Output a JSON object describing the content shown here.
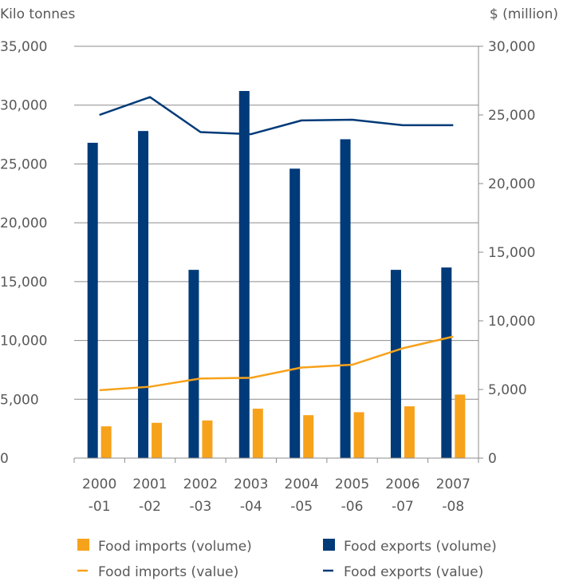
{
  "chart_data": {
    "type": "bar",
    "title": "",
    "xlabel": "",
    "ylabel_left": "Kilo tonnes",
    "ylabel_right": "$ (million)",
    "categories": [
      [
        "2000",
        "-01"
      ],
      [
        "2001",
        "-02"
      ],
      [
        "2002",
        "-03"
      ],
      [
        "2003",
        "-04"
      ],
      [
        "2004",
        "-05"
      ],
      [
        "2005",
        "-06"
      ],
      [
        "2006",
        "-07"
      ],
      [
        "2007",
        "-08"
      ]
    ],
    "ylim_left": [
      0,
      35000
    ],
    "ylim_right": [
      0,
      30000
    ],
    "yticks_left": [
      "0",
      "5,000",
      "10,000",
      "15,000",
      "20,000",
      "25,000",
      "30,000",
      "35,000"
    ],
    "yticks_right": [
      "0",
      "5,000",
      "10,000",
      "15,000",
      "20,000",
      "25,000",
      "30,000"
    ],
    "grid": true,
    "legend_position": "bottom",
    "series": [
      {
        "name": "Food imports (volume)",
        "kind": "bar",
        "axis": "left",
        "color": "#f7a21b",
        "values": [
          2700,
          3000,
          3200,
          4200,
          3650,
          3900,
          4400,
          5400
        ]
      },
      {
        "name": "Food exports (volume)",
        "kind": "bar",
        "axis": "left",
        "color": "#003a78",
        "values": [
          26800,
          27800,
          16000,
          31200,
          24600,
          27100,
          16000,
          16200
        ]
      },
      {
        "name": "Food imports (value)",
        "kind": "line",
        "axis": "right",
        "color": "#f7a21b",
        "values": [
          4950,
          5200,
          5800,
          5850,
          6600,
          6800,
          8000,
          8850
        ]
      },
      {
        "name": "Food exports (value)",
        "kind": "line",
        "axis": "right",
        "color": "#003a78",
        "values": [
          25000,
          26300,
          23750,
          23600,
          24600,
          24650,
          24250,
          24250
        ]
      }
    ]
  }
}
